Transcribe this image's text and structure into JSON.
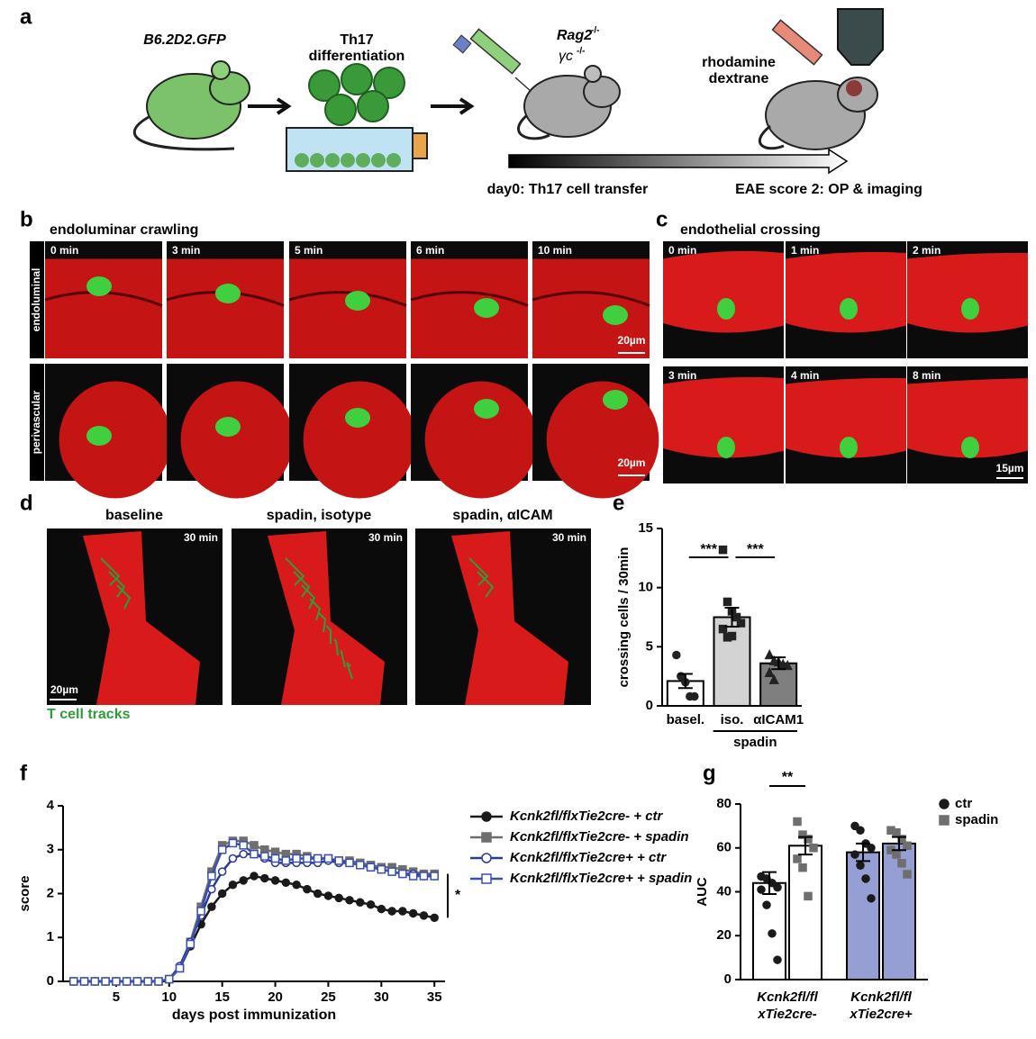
{
  "panel_a": {
    "label": "a",
    "donor": "B6.2D2.GFP",
    "culture": [
      "Th17",
      "differentiation"
    ],
    "recipient": "Rag2",
    "recipient_sup": "-/-",
    "recipient2": "γc",
    "recipient2_sup": "-/-",
    "injection": [
      "rhodamine",
      "dextrane"
    ],
    "timeline_start": "day0: Th17 cell transfer",
    "timeline_end": "EAE score 2: OP & imaging"
  },
  "panel_b": {
    "label": "b",
    "title": "endoluminar crawling",
    "rows": [
      "endoluminal",
      "perivascular"
    ],
    "times": [
      "0 min",
      "3 min",
      "5 min",
      "6 min",
      "10 min"
    ],
    "scale_bars": [
      "20µm",
      "20µm"
    ]
  },
  "panel_c": {
    "label": "c",
    "title": "endothelial crossing",
    "times": [
      "0 min",
      "1 min",
      "2 min",
      "3 min",
      "4 min",
      "8 min"
    ],
    "scale_bar": "15µm"
  },
  "panel_d": {
    "label": "d",
    "titles": [
      "baseline",
      "spadin, isotype",
      "spadin, αICAM"
    ],
    "time": "30 min",
    "scale_bar": "20µm",
    "legend": "T cell tracks"
  },
  "chart_data": [
    {
      "type": "bar",
      "label": "e",
      "categories": [
        "basel.",
        "iso.",
        "αICAM1"
      ],
      "group_label": "spadin",
      "ylabel": "crossing cells / 30min",
      "values": [
        2.1,
        7.5,
        3.6
      ],
      "errors": [
        0.6,
        0.8,
        0.5
      ],
      "colors": [
        "#ffffff",
        "#d3d3d3",
        "#7f7f7f"
      ],
      "markers": [
        "circle",
        "square",
        "triangle"
      ],
      "points": [
        [
          4.3,
          2.5,
          2.0,
          0.8,
          0.8
        ],
        [
          13.2,
          8.8,
          8.0,
          7.5,
          7.0,
          6.5,
          5.8,
          5.9
        ],
        [
          4.3,
          3.8,
          3.7,
          3.5,
          3.4,
          2.8,
          2.2
        ]
      ],
      "ylim": [
        0,
        15
      ],
      "yticks": [
        0,
        5,
        10,
        15
      ],
      "significance": [
        "***",
        "***"
      ]
    },
    {
      "type": "line",
      "label": "f",
      "xlabel": "days post immunization",
      "ylabel": "score",
      "x": [
        1,
        2,
        3,
        4,
        5,
        6,
        7,
        8,
        9,
        10,
        11,
        12,
        13,
        14,
        15,
        16,
        17,
        18,
        19,
        20,
        21,
        22,
        23,
        24,
        25,
        26,
        27,
        28,
        29,
        30,
        31,
        32,
        33,
        34,
        35
      ],
      "series": [
        {
          "name": "Kcnk2fl/flxTie2cre- + ctr",
          "color": "#1a1a1a",
          "marker": "circle",
          "filled": true,
          "values": [
            0,
            0,
            0,
            0,
            0,
            0,
            0,
            0,
            0,
            0.05,
            0.3,
            0.8,
            1.3,
            1.7,
            2.0,
            2.2,
            2.3,
            2.4,
            2.35,
            2.3,
            2.25,
            2.2,
            2.1,
            2.0,
            1.95,
            1.9,
            1.85,
            1.8,
            1.75,
            1.65,
            1.6,
            1.6,
            1.55,
            1.5,
            1.45
          ]
        },
        {
          "name": "Kcnk2fl/flxTie2cre- + spadin",
          "color": "#6e6e6e",
          "marker": "square",
          "filled": true,
          "values": [
            0,
            0,
            0,
            0,
            0,
            0,
            0,
            0,
            0,
            0.05,
            0.3,
            0.9,
            1.7,
            2.5,
            3.1,
            3.2,
            3.2,
            3.1,
            3.0,
            2.95,
            2.9,
            2.9,
            2.85,
            2.8,
            2.8,
            2.75,
            2.75,
            2.7,
            2.65,
            2.6,
            2.6,
            2.55,
            2.5,
            2.45,
            2.45
          ]
        },
        {
          "name": "Kcnk2fl/flxTie2cre+ + ctr",
          "color": "#2b3a8f",
          "marker": "circle",
          "filled": false,
          "values": [
            0,
            0,
            0,
            0,
            0,
            0,
            0,
            0,
            0,
            0.05,
            0.35,
            0.9,
            1.5,
            2.1,
            2.5,
            2.8,
            2.9,
            2.9,
            2.8,
            2.7,
            2.7,
            2.7,
            2.7,
            2.7,
            2.75,
            2.7,
            2.7,
            2.65,
            2.6,
            2.55,
            2.5,
            2.45,
            2.45,
            2.4,
            2.4
          ]
        },
        {
          "name": "Kcnk2fl/flxTie2cre+ + spadin",
          "color": "#3a4fb0",
          "marker": "square",
          "filled": false,
          "values": [
            0,
            0,
            0,
            0,
            0,
            0,
            0,
            0,
            0,
            0.05,
            0.3,
            0.85,
            1.6,
            2.4,
            3.0,
            3.15,
            3.1,
            2.9,
            2.85,
            2.8,
            2.75,
            2.8,
            2.8,
            2.8,
            2.8,
            2.75,
            2.7,
            2.65,
            2.6,
            2.55,
            2.5,
            2.45,
            2.4,
            2.4,
            2.4
          ]
        }
      ],
      "xlim": [
        0,
        36
      ],
      "xticks": [
        5,
        10,
        15,
        20,
        25,
        30,
        35
      ],
      "ylim": [
        0,
        4
      ],
      "yticks": [
        0,
        1,
        2,
        3,
        4
      ],
      "significance": "*"
    },
    {
      "type": "bar",
      "label": "g",
      "ylabel": "AUC",
      "categories": [
        [
          "Kcnk2fl/fl",
          "xTie2cre-"
        ],
        [
          "Kcnk2fl/fl",
          "xTie2cre+"
        ]
      ],
      "bar_colors": [
        "#ffffff",
        "#959fd3"
      ],
      "series": [
        {
          "name": "ctr",
          "color": "#1a1a1a",
          "marker": "circle",
          "values": [
            44,
            58
          ],
          "errors": [
            5,
            4
          ],
          "points": [
            [
              47,
              46,
              44,
              42,
              41,
              34,
              21,
              9
            ],
            [
              70,
              68,
              62,
              60,
              57,
              52,
              46,
              37
            ]
          ]
        },
        {
          "name": "spadin",
          "color": "#6e6e6e",
          "marker": "square",
          "values": [
            61,
            62
          ],
          "errors": [
            4,
            3
          ],
          "points": [
            [
              72,
              66,
              64,
              60,
              55,
              51,
              38
            ],
            [
              68,
              67,
              64,
              61,
              59,
              57,
              53,
              48
            ]
          ]
        }
      ],
      "ylim": [
        0,
        80
      ],
      "yticks": [
        0,
        20,
        40,
        60,
        80
      ],
      "significance": "**"
    }
  ]
}
